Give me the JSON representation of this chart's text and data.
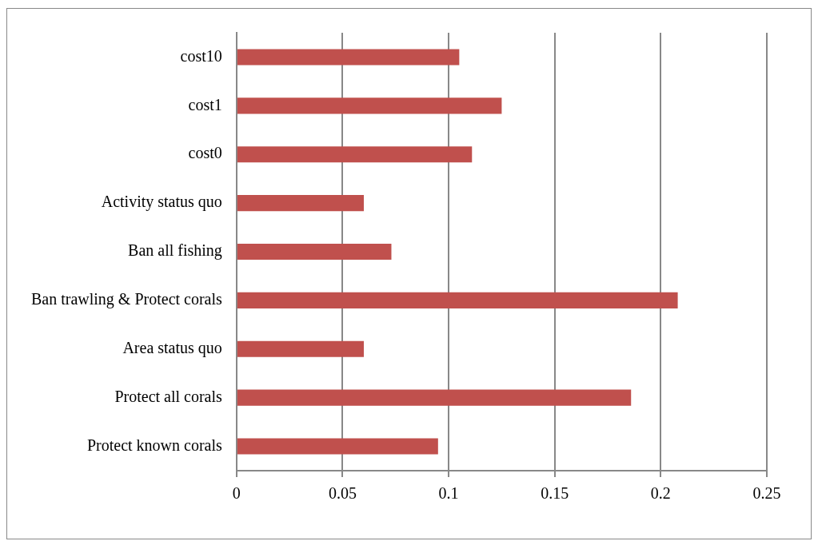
{
  "chart_data": {
    "type": "bar",
    "orientation": "horizontal",
    "categories": [
      "cost10",
      "cost1",
      "cost0",
      "Activity status quo",
      "Ban all fishing",
      "Ban trawling & Protect corals",
      "Area status quo",
      "Protect all corals",
      "Protect known corals"
    ],
    "values": [
      0.105,
      0.125,
      0.111,
      0.06,
      0.073,
      0.208,
      0.06,
      0.186,
      0.095
    ],
    "color": "#c0504d",
    "xlim": [
      0,
      0.25
    ],
    "xticks": [
      0,
      0.05,
      0.1,
      0.15,
      0.2,
      0.25
    ],
    "grid": "x"
  }
}
